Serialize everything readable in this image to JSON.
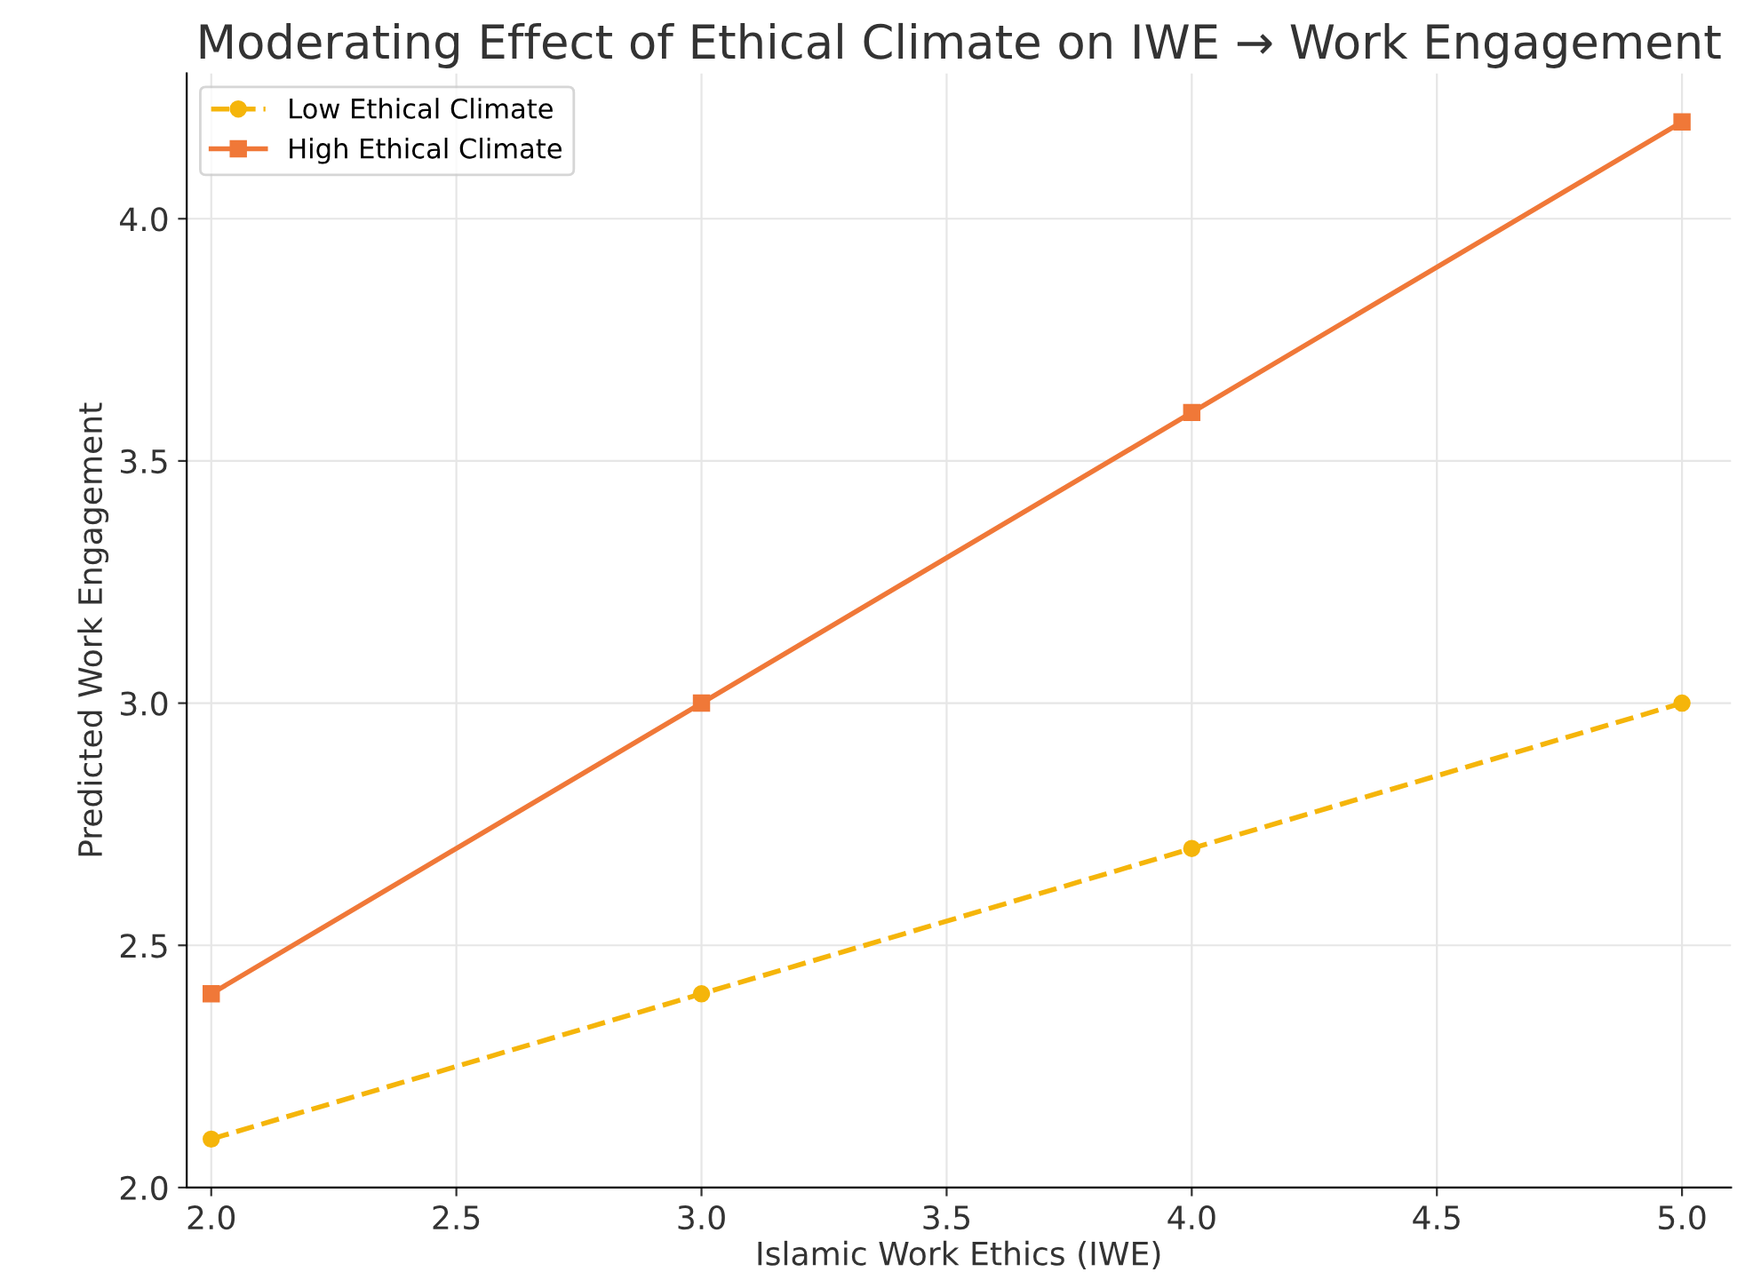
{
  "chart_data": {
    "type": "line",
    "title": "Moderating Effect of Ethical Climate on IWE → Work Engagement",
    "xlabel": "Islamic Work Ethics (IWE)",
    "ylabel": "Predicted Work Engagement",
    "x": [
      2,
      3,
      4,
      5
    ],
    "series": [
      {
        "name": "Low Ethical Climate",
        "color": "#f5b50a",
        "values": [
          2.1,
          2.4,
          2.7,
          3.0
        ],
        "marker": "circle",
        "line_style": "dashed"
      },
      {
        "name": "High Ethical Climate",
        "color": "#f07838",
        "values": [
          2.4,
          3.0,
          3.6,
          4.2
        ],
        "marker": "square",
        "line_style": "solid"
      }
    ],
    "xlim": [
      1.95,
      5.1
    ],
    "ylim": [
      2.0,
      4.3
    ],
    "xticks": [
      {
        "value": 2,
        "label": "2.0"
      },
      2.5,
      {
        "value": 3,
        "label": "3.0"
      },
      3.5,
      {
        "value": 4,
        "label": "4.0"
      },
      4.5,
      {
        "value": 5,
        "label": "5.0"
      }
    ],
    "yticks": [
      {
        "value": 2,
        "label": "2.0"
      },
      2.5,
      {
        "value": 3,
        "label": "3.0"
      },
      3.5,
      {
        "value": 4,
        "label": "4.0"
      }
    ],
    "grid": true,
    "legend": "top left"
  }
}
